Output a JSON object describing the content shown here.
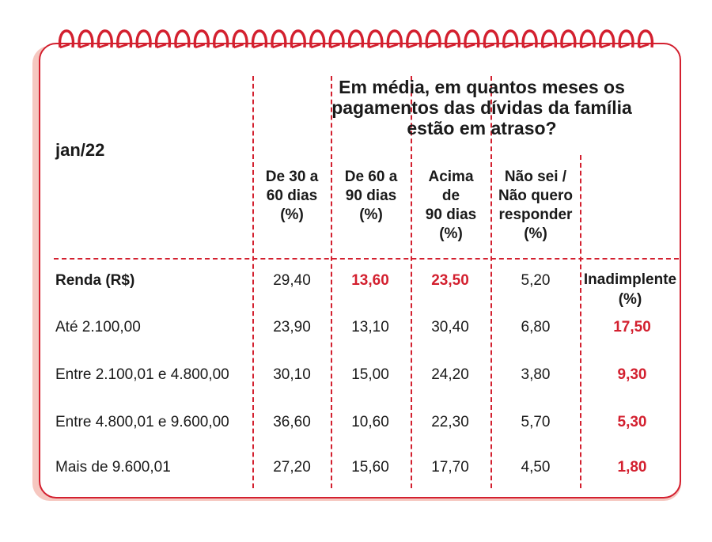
{
  "chart_data": {
    "type": "table",
    "period": "jan/22",
    "title": "Em média, em quantos meses os pagamentos das dívidas da família estão em atraso?",
    "title_lines": [
      "Em média, em quantos meses os",
      "pagamentos das dívidas da família",
      "estão em atraso?"
    ],
    "columns": [
      {
        "lines": [
          "De 30 a",
          "60 dias",
          "(%)"
        ]
      },
      {
        "lines": [
          "De 60 a",
          "90 dias",
          "(%)"
        ]
      },
      {
        "lines": [
          "Acima",
          "de",
          "90 dias",
          "(%)"
        ]
      },
      {
        "lines": [
          "Não sei /",
          "Não quero",
          "responder",
          "(%)"
        ]
      }
    ],
    "inadimplente_lines": [
      "Inadimplente",
      "(%)"
    ],
    "rows": [
      {
        "label": "Renda (R$)",
        "values": [
          "29,40",
          "13,60",
          "23,50",
          "5,20"
        ],
        "inadimplente": ""
      },
      {
        "label": "Até 2.100,00",
        "values": [
          "23,90",
          "13,10",
          "30,40",
          "6,80"
        ],
        "inadimplente": "17,50"
      },
      {
        "label": "Entre 2.100,01 e 4.800,00",
        "values": [
          "30,10",
          "15,00",
          "24,20",
          "3,80"
        ],
        "inadimplente": "9,30"
      },
      {
        "label": "Entre 4.800,01 e 9.600,00",
        "values": [
          "36,60",
          "10,60",
          "22,30",
          "5,70"
        ],
        "inadimplente": "5,30"
      },
      {
        "label": "Mais de 9.600,01",
        "values": [
          "27,20",
          "15,60",
          "17,70",
          "4,50"
        ],
        "inadimplente": "1,80"
      }
    ]
  },
  "colors": {
    "accent": "#d3202f",
    "shadow": "#f6c7c0",
    "text": "#1a1a1a"
  },
  "icons": {
    "binding": "spiral-binding-icon"
  }
}
